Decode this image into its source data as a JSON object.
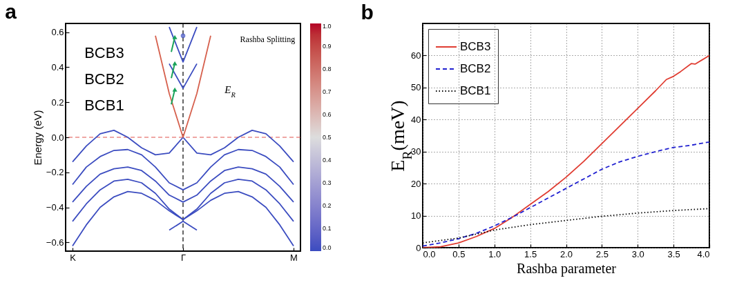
{
  "chart_data": [
    {
      "type": "line",
      "title": "a",
      "ylabel": "Energy (eV)",
      "categories": [
        "K",
        null,
        null,
        null,
        null,
        null,
        null,
        null,
        "Γ",
        null,
        null,
        null,
        null,
        null,
        null,
        null,
        "M"
      ],
      "ylim": [
        -0.65,
        0.65
      ],
      "yticks": [
        -0.6,
        -0.4,
        -0.2,
        {
          "value": 0,
          "label": "0.0"
        },
        0.2,
        0.4,
        0.6
      ],
      "clim": [
        0,
        1
      ],
      "cticks": [
        {
          "value": 0,
          "label": "0.0"
        },
        0.1,
        0.2,
        0.3,
        0.4,
        0.5,
        0.6,
        0.7,
        0.8,
        0.9,
        {
          "value": 1,
          "label": "1.0"
        }
      ],
      "grid": false,
      "series": [
        {
          "color": "#3b4cc0",
          "values": [
            -0.14,
            -0.05,
            0.02,
            0.04,
            0.0,
            -0.06,
            -0.1,
            -0.09,
            0,
            -0.09,
            -0.1,
            -0.06,
            0.0,
            0.04,
            0.02,
            -0.05,
            -0.14
          ]
        },
        {
          "color": "#d6604d",
          "values": [
            null,
            null,
            null,
            null,
            null,
            null,
            0.58,
            0.25,
            0,
            0.25,
            0.58,
            null,
            null,
            null,
            null,
            null,
            null
          ]
        },
        {
          "color": "#3b4cc0",
          "values": [
            -0.27,
            -0.17,
            -0.11,
            -0.075,
            -0.07,
            -0.1,
            -0.17,
            -0.26,
            -0.3,
            -0.26,
            -0.17,
            -0.1,
            -0.07,
            -0.075,
            -0.11,
            -0.17,
            -0.27
          ]
        },
        {
          "color": "#3b4cc0",
          "values": [
            -0.37,
            -0.28,
            -0.21,
            -0.18,
            -0.17,
            -0.19,
            -0.25,
            -0.33,
            -0.37,
            -0.33,
            -0.25,
            -0.19,
            -0.17,
            -0.18,
            -0.21,
            -0.28,
            -0.37
          ]
        },
        {
          "color": "#3b4cc0",
          "values": [
            -0.48,
            -0.38,
            -0.3,
            -0.25,
            -0.24,
            -0.26,
            -0.32,
            -0.41,
            -0.47,
            -0.41,
            -0.32,
            -0.26,
            -0.24,
            -0.25,
            -0.3,
            -0.38,
            -0.48
          ]
        },
        {
          "color": "#3b4cc0",
          "values": [
            -0.62,
            -0.5,
            -0.4,
            -0.34,
            -0.31,
            -0.32,
            -0.36,
            -0.42,
            -0.47,
            -0.42,
            -0.36,
            -0.32,
            -0.31,
            -0.34,
            -0.4,
            -0.5,
            -0.62
          ]
        },
        {
          "color": "#3b4cc0",
          "values": [
            null,
            null,
            null,
            null,
            null,
            null,
            null,
            -0.53,
            -0.48,
            -0.53,
            null,
            null,
            null,
            null,
            null,
            null,
            null
          ]
        },
        {
          "color": "#3b4cc0",
          "values": [
            null,
            null,
            null,
            null,
            null,
            null,
            null,
            0.42,
            0.28,
            0.42,
            null,
            null,
            null,
            null,
            null,
            null,
            null
          ]
        },
        {
          "color": "#3b4cc0",
          "values": [
            null,
            null,
            null,
            null,
            null,
            null,
            null,
            0.63,
            0.43,
            0.63,
            null,
            null,
            null,
            null,
            null,
            null,
            null
          ]
        },
        {
          "color": "#3b4cc0",
          "type": "scatter",
          "values": [
            null,
            null,
            null,
            null,
            null,
            null,
            null,
            null,
            0.58,
            null,
            null,
            null,
            null,
            null,
            null,
            null,
            null
          ]
        }
      ],
      "ref_lines": [
        {
          "axis": "y",
          "value": 0,
          "color": "#e0504a",
          "line_style": "dashed"
        },
        {
          "axis": "x",
          "value": "Γ",
          "color": "#000000",
          "line_style": "dashed"
        }
      ],
      "annotations": [
        "BCB3",
        "BCB2",
        "BCB1",
        "Rashba Splitting",
        "E$_{R}$"
      ]
    },
    {
      "type": "line",
      "title": "b",
      "xlabel": "Rashba parameter",
      "ylabel": "E$_{R}$(meV)",
      "xlim": [
        0,
        4
      ],
      "xticks": [
        {
          "value": 0,
          "label": "0.0"
        },
        0.5,
        {
          "value": 1,
          "label": "1.0"
        },
        1.5,
        {
          "value": 2,
          "label": "2.0"
        },
        2.5,
        {
          "value": 3,
          "label": "3.0"
        },
        3.5,
        {
          "value": 4,
          "label": "4.0"
        }
      ],
      "ylim": [
        0,
        70
      ],
      "yticks": [
        0,
        10,
        20,
        30,
        40,
        50,
        60
      ],
      "grid": true,
      "legend": "top left",
      "series": [
        {
          "name": "BCB3",
          "color": "#e03c31",
          "line_style": "solid",
          "x": [
            0,
            0.25,
            0.5,
            0.75,
            1.0,
            1.25,
            1.5,
            1.75,
            2.0,
            2.25,
            2.5,
            2.75,
            3.0,
            3.25,
            3.4,
            3.5,
            3.6,
            3.75,
            3.8,
            4.0
          ],
          "values": [
            0,
            0.3,
            1.5,
            3.5,
            6,
            9.5,
            13.5,
            17.5,
            22,
            27,
            32.5,
            38,
            43.5,
            49,
            52.5,
            53.5,
            55,
            57.5,
            57.3,
            60
          ]
        },
        {
          "name": "BCB2",
          "color": "#1f1fd0",
          "line_style": "dashed",
          "x": [
            0,
            0.25,
            0.5,
            0.75,
            1.0,
            1.25,
            1.5,
            1.75,
            2.0,
            2.25,
            2.5,
            2.75,
            3.0,
            3.25,
            3.5,
            3.75,
            4.0
          ],
          "values": [
            0.5,
            1.5,
            2.8,
            4.5,
            6.8,
            9.5,
            12.5,
            15.5,
            18.5,
            21.5,
            24.5,
            26.8,
            28.5,
            30,
            31.3,
            32,
            33
          ]
        },
        {
          "name": "BCB1",
          "color": "#000000",
          "line_style": "dotted",
          "x": [
            0,
            0.5,
            1.0,
            1.5,
            2.0,
            2.5,
            3.0,
            3.5,
            4.0
          ],
          "values": [
            1.5,
            3,
            5.5,
            7.2,
            8.5,
            9.8,
            10.8,
            11.6,
            12.2
          ]
        }
      ]
    }
  ]
}
